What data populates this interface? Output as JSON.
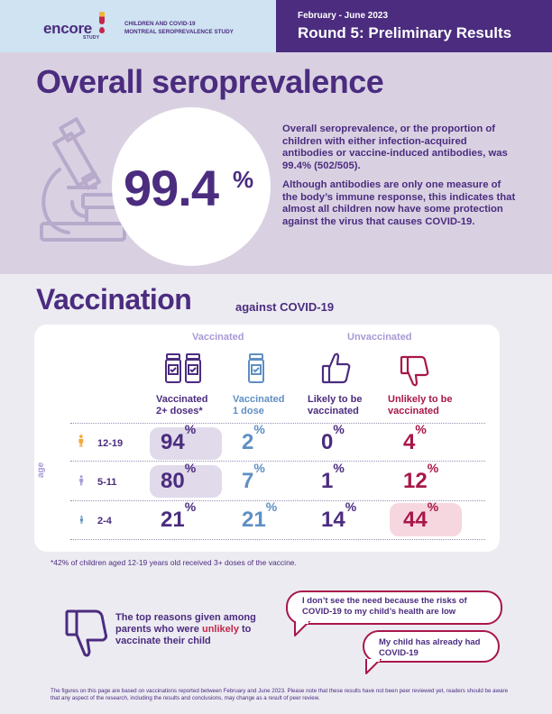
{
  "header": {
    "logo": "encore",
    "logo_sub": "STUDY",
    "study_name_line1": "CHILDREN AND COVID-19",
    "study_name_line2": "MONTREAL SEROPREVALENCE STUDY",
    "dates": "February - June 2023",
    "round_title": "Round 5: Preliminary Results"
  },
  "seroprevalence": {
    "title": "Overall seroprevalence",
    "value": "99.4",
    "unit": "%",
    "paragraph1": "Overall seroprevalence, or the proportion of children with either infection-acquired antibodies or vaccine-induced antibodies, was 99.4% (502/505).",
    "paragraph2": "Although antibodies are only one measure of the body’s immune response, this indicates that almost all children now have some protection against the virus that causes COVID-19."
  },
  "vaccination": {
    "title": "Vaccination",
    "subtitle": "against COVID-19",
    "group_vaccinated": "Vaccinated",
    "group_unvaccinated": "Unvaccinated",
    "age_axis_label": "age",
    "columns": [
      {
        "line1": "Vaccinated",
        "line2": "2+ doses*",
        "color": "#4b2c7f"
      },
      {
        "line1": "Vaccinated",
        "line2": "1 dose",
        "color": "#5e8fc4"
      },
      {
        "line1": "Likely to be",
        "line2": "vaccinated",
        "color": "#4b2c7f"
      },
      {
        "line1": "Unlikely to be",
        "line2": "vaccinated",
        "color": "#a8174a"
      }
    ],
    "rows": [
      {
        "age": "12-19",
        "values": [
          "94",
          "2",
          "0",
          "4"
        ],
        "person_color": "#f2a93b"
      },
      {
        "age": "5-11",
        "values": [
          "80",
          "7",
          "1",
          "12"
        ],
        "person_color": "#a899d6"
      },
      {
        "age": "2-4",
        "values": [
          "21",
          "21",
          "14",
          "44"
        ],
        "person_color": "#5e8fc4"
      }
    ],
    "percent_sign": "%",
    "footnote": "*42% of children aged 12-19 years old received 3+ doses of the vaccine."
  },
  "reasons": {
    "intro_part1": "The top reasons given among parents who were ",
    "intro_highlight": "unlikely",
    "intro_part2": " to vaccinate their child",
    "bubble1": "I don’t see the need because the risks of COVID-19 to my child’s health are low",
    "bubble2": "My child has already had COVID-19"
  },
  "disclaimer": "The figures on this page are based on vaccinations reported between February and June 2023. Please note that these results have not been peer reviewed yet, readers should be aware that any aspect of the research, including the results and conclusions, may change as a result of peer review."
}
